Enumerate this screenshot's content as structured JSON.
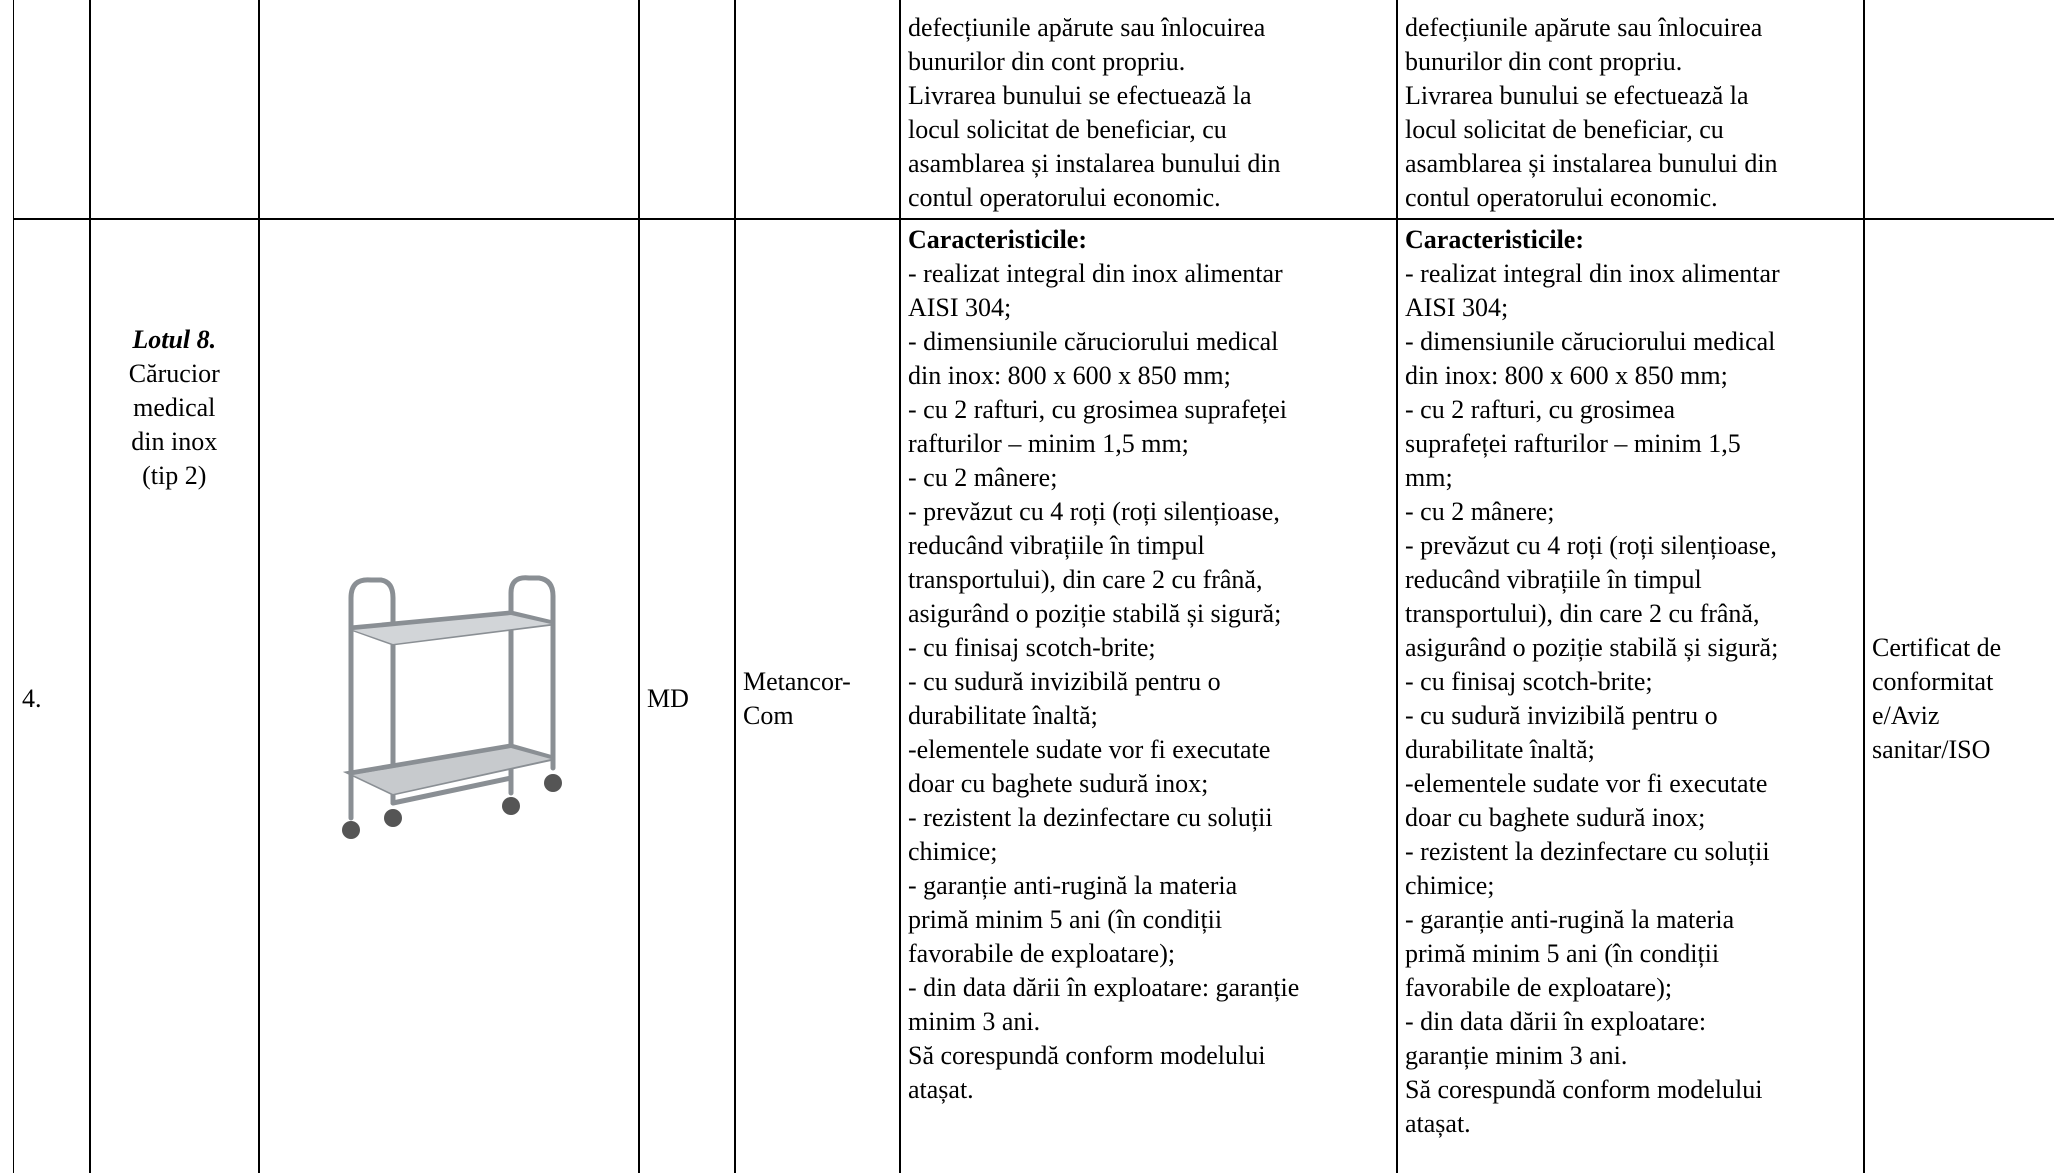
{
  "table": {
    "rows": [
      {
        "cells": [
          [],
          [],
          [],
          [],
          [],
          [
            "defecțiunile apărute sau înlocuirea",
            "bunurilor din cont propriu.",
            "Livrarea bunului se efectuează la",
            "locul solicitat de beneficiar, cu",
            "asamblarea și instalarea bunului din",
            "contul operatorului economic."
          ],
          [
            "defecțiunile apărute sau înlocuirea",
            "bunurilor din cont propriu.",
            "Livrarea bunului se efectuează la",
            "locul solicitat de beneficiar, cu",
            "asamblarea și instalarea bunului din",
            "contul operatorului economic."
          ],
          []
        ]
      },
      {
        "cells": [
          [
            "4."
          ],
          [
            "Lotul 8.",
            "Cărucior",
            "medical",
            "din inox",
            "(tip 2)"
          ],
          [],
          [
            "MD"
          ],
          [
            "Metancor-",
            "Com"
          ],
          [
            "Caracteristicile:",
            "- realizat integral din inox alimentar",
            "AISI 304;",
            "- dimensiunile căruciorului medical",
            "din inox: 800 x 600 x 850 mm;",
            "- cu 2 rafturi, cu grosimea suprafeței",
            "rafturilor – minim 1,5 mm;",
            "- cu 2 mânere;",
            "- prevăzut cu 4 roți (roți silențioase,",
            "reducând vibrațiile în timpul",
            "transportului), din care 2 cu frână,",
            "asigurând o poziție stabilă și sigură;",
            "- cu finisaj scotch-brite;",
            "- cu sudură invizibilă pentru o",
            "durabilitate înaltă;",
            "-elementele sudate vor fi executate",
            "doar cu baghete sudură inox;",
            "- rezistent la dezinfectare cu soluții",
            "chimice;",
            "- garanție anti-rugină la materia",
            "primă minim 5 ani (în condiții",
            "favorabile de exploatare);",
            "- din data dării în exploatare: garanție",
            "minim 3 ani.",
            "Să corespundă conform modelului",
            "atașat."
          ],
          [
            "Caracteristicile:",
            "- realizat integral din inox alimentar",
            "AISI 304;",
            "- dimensiunile căruciorului medical",
            "din inox: 800 x 600 x 850 mm;",
            "- cu 2 rafturi, cu grosimea",
            "suprafeței rafturilor – minim 1,5",
            "mm;",
            "- cu 2 mânere;",
            "- prevăzut cu 4 roți (roți silențioase,",
            "reducând vibrațiile în timpul",
            "transportului), din care 2 cu frână,",
            "asigurând o poziție stabilă și sigură;",
            "- cu finisaj scotch-brite;",
            "- cu sudură invizibilă pentru o",
            "durabilitate înaltă;",
            "-elementele sudate vor fi executate",
            "doar cu baghete sudură inox;",
            "- rezistent la dezinfectare cu soluții",
            "chimice;",
            "- garanție anti-rugină la materia",
            "primă minim 5 ani (în condiții",
            "favorabile de exploatare);",
            "- din data dării în exploatare:",
            "garanție minim 3 ani.",
            "Să corespundă conform modelului",
            "atașat."
          ],
          [
            "Certificat de",
            "conformitat",
            "e/Aviz",
            "sanitar/ISO"
          ]
        ]
      }
    ]
  }
}
